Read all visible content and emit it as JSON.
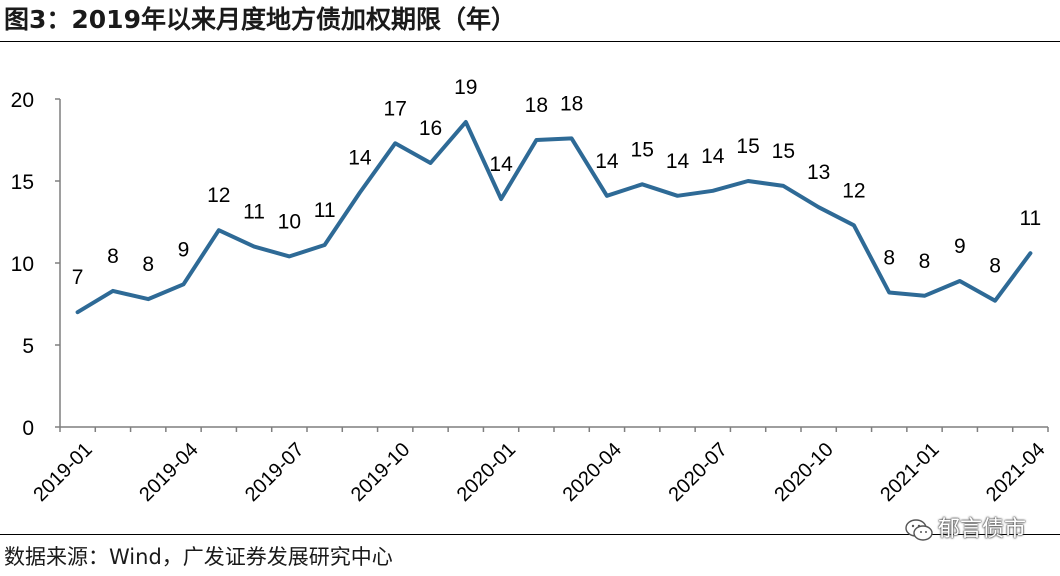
{
  "figure_title": "图3：2019年以来月度地方债加权期限（年）",
  "source_text": "数据来源：Wind，广发证券发展研究中心",
  "watermark": {
    "text": "郁言债市",
    "logo_icon": "wechat-icon"
  },
  "colors": {
    "line": "#2e6a96",
    "axis": "#7f7f7f",
    "text": "#000000"
  },
  "chart_data": {
    "type": "line",
    "title": "",
    "xlabel": "",
    "ylabel": "",
    "ylim": [
      0,
      20
    ],
    "yticks": [
      0,
      5,
      10,
      15,
      20
    ],
    "grid": false,
    "legend": "none",
    "x": [
      "2019-01",
      "2019-02",
      "2019-03",
      "2019-04",
      "2019-05",
      "2019-06",
      "2019-07",
      "2019-08",
      "2019-09",
      "2019-10",
      "2019-11",
      "2019-12",
      "2020-01",
      "2020-02",
      "2020-03",
      "2020-04",
      "2020-05",
      "2020-06",
      "2020-07",
      "2020-08",
      "2020-09",
      "2020-10",
      "2020-11",
      "2020-12",
      "2021-01",
      "2021-02",
      "2021-03",
      "2021-04"
    ],
    "xtick_labels": [
      "2019-01",
      "2019-04",
      "2019-07",
      "2019-10",
      "2020-01",
      "2020-04",
      "2020-07",
      "2020-10",
      "2021-01",
      "2021-04"
    ],
    "series": [
      {
        "values": [
          7.0,
          8.3,
          7.8,
          8.7,
          12.0,
          11.0,
          10.4,
          11.1,
          14.3,
          17.3,
          16.1,
          18.6,
          13.9,
          17.5,
          17.6,
          14.1,
          14.8,
          14.1,
          14.4,
          15.0,
          14.7,
          13.4,
          12.3,
          8.2,
          8.0,
          8.9,
          7.7,
          10.6
        ],
        "data_labels": [
          "7",
          "8",
          "8",
          "9",
          "12",
          "11",
          "10",
          "11",
          "14",
          "17",
          "16",
          "19",
          "14",
          "18",
          "18",
          "14",
          "15",
          "14",
          "14",
          "15",
          "15",
          "13",
          "12",
          "8",
          "8",
          "9",
          "8",
          "11"
        ]
      }
    ]
  }
}
